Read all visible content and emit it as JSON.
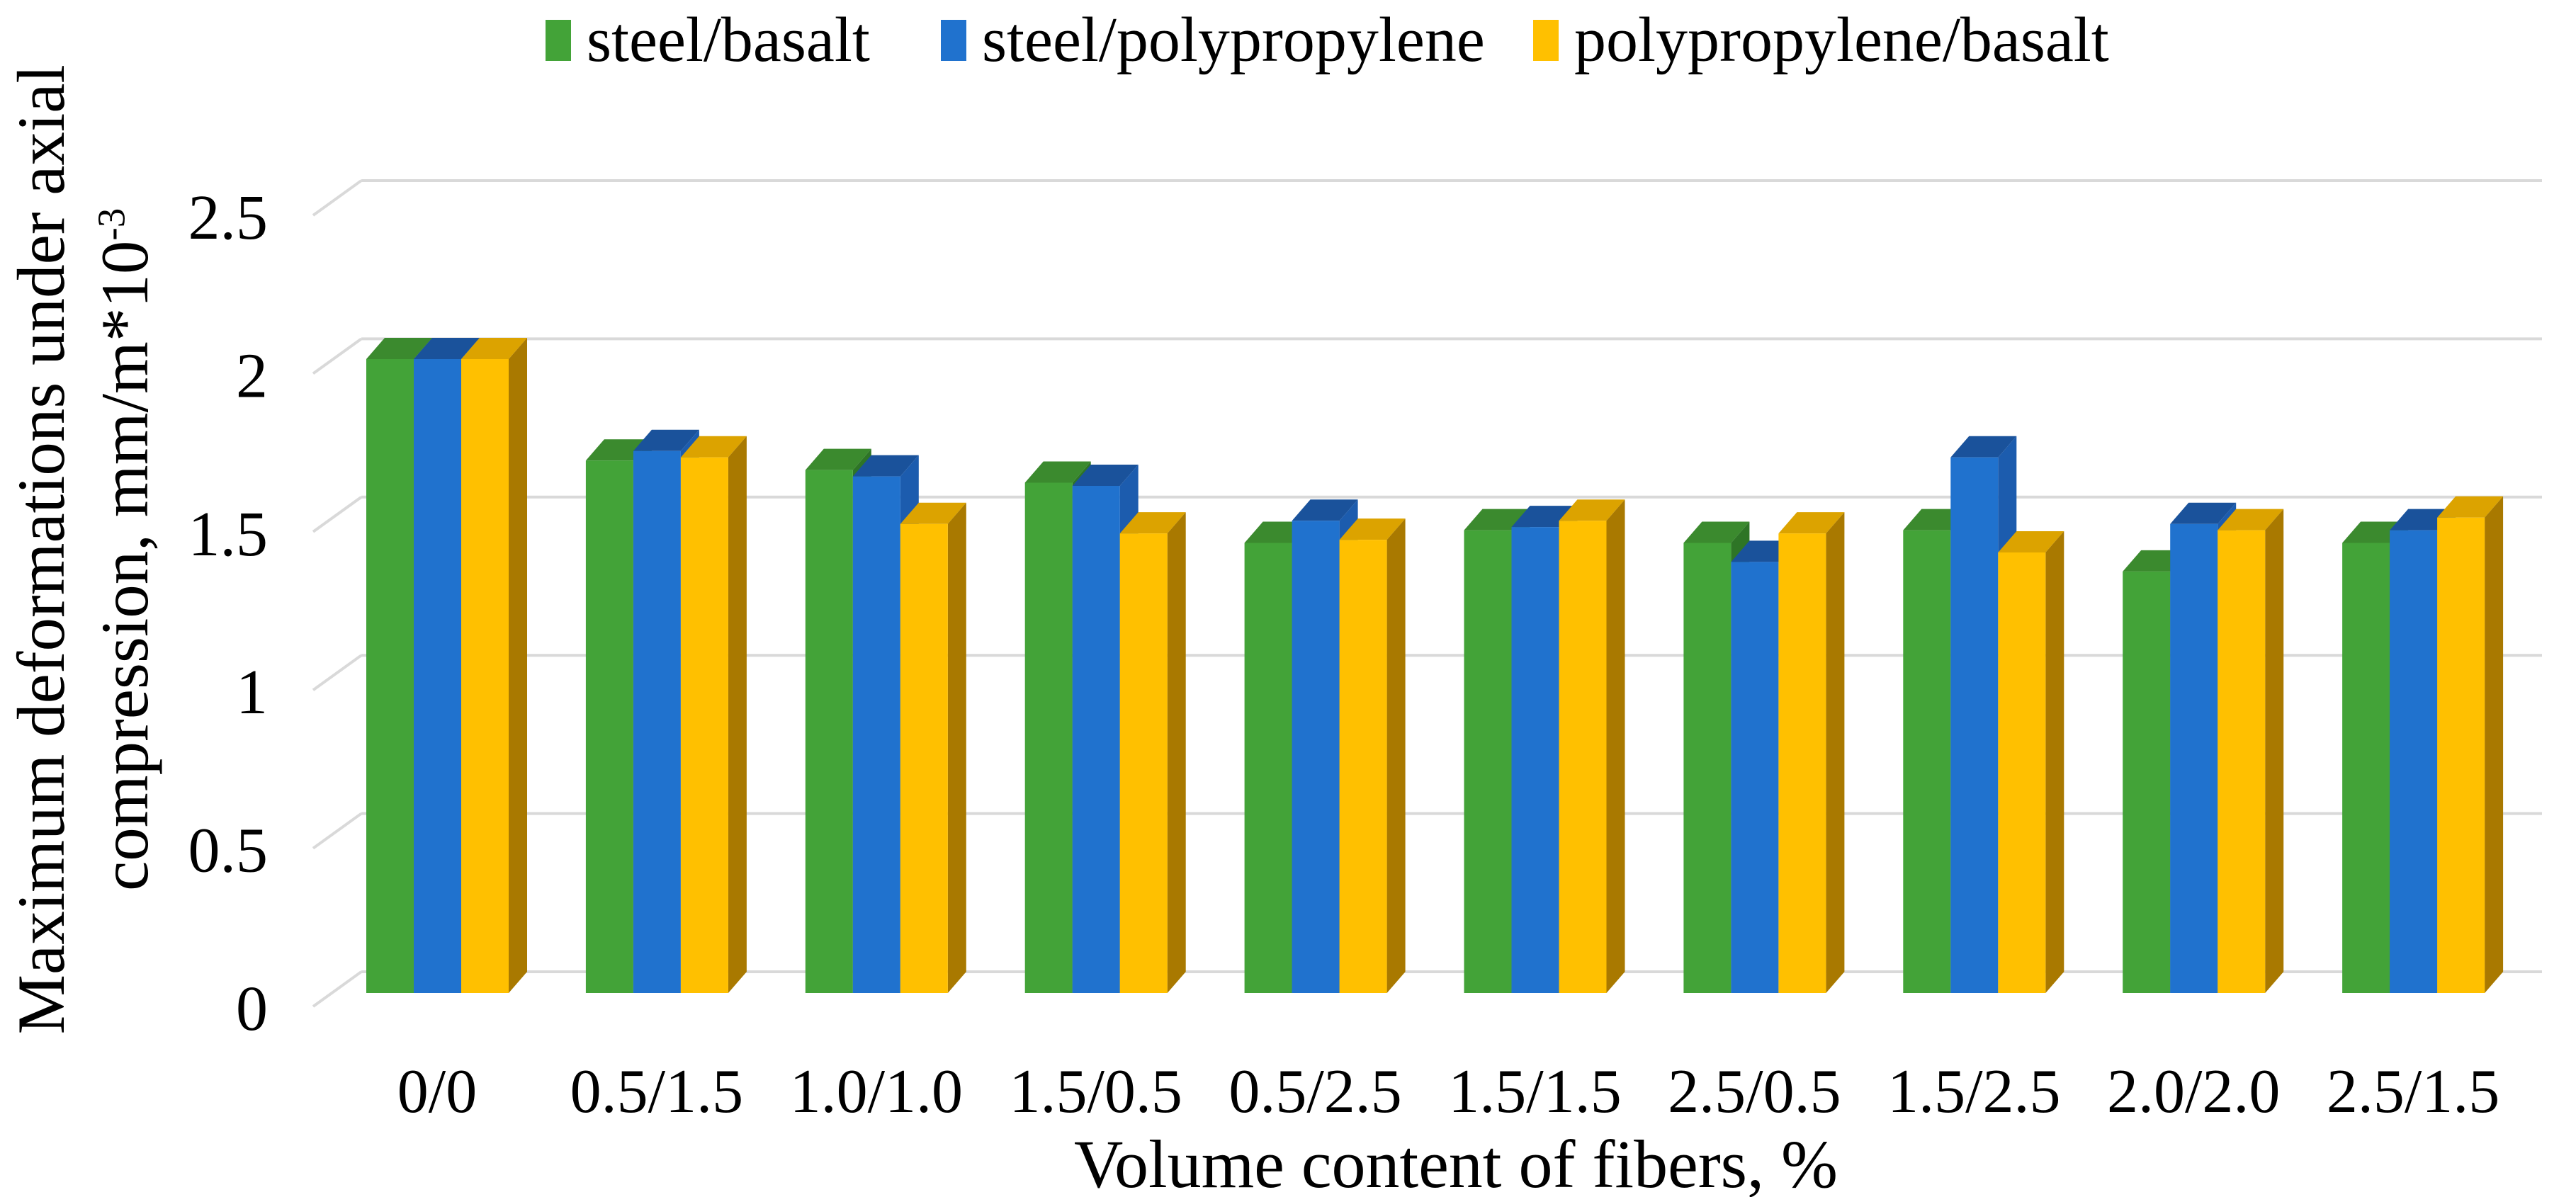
{
  "chart_data": {
    "type": "bar",
    "style": "3d-clustered-column",
    "title": "",
    "categories": [
      "0/0",
      "0.5/1.5",
      "1.0/1.0",
      "1.5/0.5",
      "0.5/2.5",
      "1.5/1.5",
      "2.5/0.5",
      "1.5/2.5",
      "2.0/2.0",
      "2.5/1.5"
    ],
    "series": [
      {
        "name": "steel/basalt",
        "color": "#43A338",
        "color_top": "#3B8A2E",
        "color_side": "#2E7526",
        "values": [
          2.0,
          1.68,
          1.65,
          1.61,
          1.42,
          1.46,
          1.42,
          1.46,
          1.33,
          1.42
        ]
      },
      {
        "name": "steel/polypropylene",
        "color": "#2072CE",
        "color_top": "#1A529B",
        "color_side": "#1C5CAE",
        "values": [
          2.0,
          1.71,
          1.63,
          1.6,
          1.49,
          1.47,
          1.36,
          1.69,
          1.48,
          1.46
        ]
      },
      {
        "name": "polypropylene/basalt",
        "color": "#FFC000",
        "color_top": "#DCA300",
        "color_side": "#A97900",
        "values": [
          2.0,
          1.69,
          1.48,
          1.45,
          1.43,
          1.49,
          1.45,
          1.39,
          1.46,
          1.5
        ]
      }
    ],
    "xlabel": "Volume content of fibers, %",
    "ylabel_line1": "Maximum deformations under axial",
    "ylabel_line2_base": "compression, mm/m*10",
    "ylabel_line2_exp": "-3",
    "ylim": [
      0,
      2.5
    ],
    "y_ticks": [
      "0",
      "0.5",
      "1",
      "1.5",
      "2",
      "2.5"
    ],
    "y_tick_values": [
      0,
      0.5,
      1,
      1.5,
      2,
      2.5
    ],
    "grid": true,
    "legend_position": "top",
    "gridline_color": "#D9D9D9",
    "text_color": "#000000",
    "background_color": "#FFFFFF"
  }
}
